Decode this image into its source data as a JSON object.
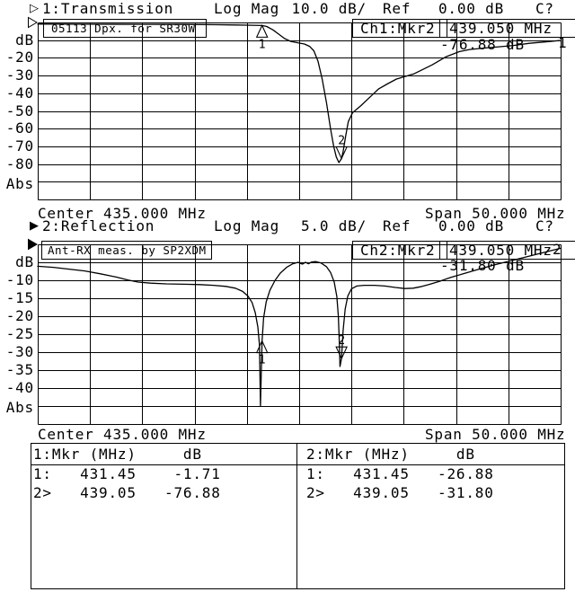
{
  "app": {
    "bg": "#ffffff",
    "fg": "#000000"
  },
  "chart_data": [
    {
      "type": "line",
      "channel": "1",
      "active": false,
      "header": {
        "indicator": "▷",
        "label": "1:Transmission",
        "mode": "Log Mag",
        "scale": "10.0 dB/",
        "ref_label": "Ref",
        "ref_value": "0.00 dB",
        "cal": "C?"
      },
      "title_box": "05113 Dpx. for SR30W",
      "marker_readout": {
        "channel_marker": "Ch1:Mkr2",
        "frequency": "439.050 MHz",
        "value": "-76.88 dB"
      },
      "trace_number": "1",
      "x_axis": {
        "center_label": "Center 435.000 MHz",
        "span_label": "Span 50.000 MHz",
        "center_mhz": 435.0,
        "span_mhz": 50.0,
        "fmin": 410,
        "fmax": 460
      },
      "y_axis": {
        "unit": "dB",
        "ref_db": 0,
        "db_per_div": 10,
        "ylim": [
          -100,
          0
        ],
        "grid": true,
        "labels": [
          {
            "text": "dB",
            "db": -10
          },
          {
            "text": "-20",
            "db": -20
          },
          {
            "text": "-30",
            "db": -30
          },
          {
            "text": "-40",
            "db": -40
          },
          {
            "text": "-50",
            "db": -50
          },
          {
            "text": "-60",
            "db": -60
          },
          {
            "text": "-70",
            "db": -70
          },
          {
            "text": "-80",
            "db": -80
          },
          {
            "text": "Abs",
            "db": -91.5
          }
        ]
      },
      "markers": [
        {
          "n": "1",
          "mhz": 431.45,
          "db": -1.71,
          "dir": "up"
        },
        {
          "n": "2",
          "mhz": 439.05,
          "db": -76.88,
          "dir": "down"
        }
      ],
      "trace": [
        [
          410,
          -0.9
        ],
        [
          415,
          -1.0
        ],
        [
          420,
          -1.05
        ],
        [
          424,
          -1.1
        ],
        [
          427,
          -1.25
        ],
        [
          429,
          -1.4
        ],
        [
          430.5,
          -1.55
        ],
        [
          431.45,
          -1.71
        ],
        [
          431.9,
          -2.3
        ],
        [
          432.5,
          -4.2
        ],
        [
          433,
          -6.4
        ],
        [
          433.6,
          -9.1
        ],
        [
          434.2,
          -10.7
        ],
        [
          434.8,
          -11.4
        ],
        [
          435.5,
          -12.2
        ],
        [
          436,
          -13.5
        ],
        [
          436.4,
          -16
        ],
        [
          436.8,
          -22
        ],
        [
          437.2,
          -32
        ],
        [
          437.6,
          -45
        ],
        [
          438,
          -60
        ],
        [
          438.3,
          -70
        ],
        [
          438.55,
          -76
        ],
        [
          438.8,
          -79.2
        ],
        [
          439.05,
          -76.88
        ],
        [
          439.2,
          -73
        ],
        [
          439.45,
          -64
        ],
        [
          439.7,
          -56
        ],
        [
          440.1,
          -51
        ],
        [
          440.9,
          -47
        ],
        [
          441.8,
          -42
        ],
        [
          442.6,
          -37.5
        ],
        [
          443.5,
          -34.5
        ],
        [
          444.3,
          -32
        ],
        [
          446,
          -29
        ],
        [
          447.7,
          -24
        ],
        [
          449,
          -19.5
        ],
        [
          450.3,
          -16.5
        ],
        [
          451.3,
          -15.3
        ],
        [
          452.8,
          -14.4
        ],
        [
          454.2,
          -13.7
        ],
        [
          455.5,
          -13
        ],
        [
          457,
          -11.8
        ],
        [
          458.5,
          -11
        ],
        [
          459.9,
          -10.2
        ]
      ]
    },
    {
      "type": "line",
      "channel": "2",
      "active": true,
      "header": {
        "indicator": "▶",
        "label": "2:Reflection",
        "mode": "Log Mag",
        "scale": "5.0 dB/",
        "ref_label": "Ref",
        "ref_value": "0.00 dB",
        "cal": "C?"
      },
      "title_box": "Ant-RX meas. by SP2XDM",
      "marker_readout": {
        "channel_marker": "Ch2:Mkr2",
        "frequency": "439.050 MHz",
        "value": "-31.80 dB"
      },
      "trace_number": "2",
      "x_axis": {
        "center_label": "Center 435.000 MHz",
        "span_label": "Span 50.000 MHz",
        "center_mhz": 435.0,
        "span_mhz": 50.0,
        "fmin": 410,
        "fmax": 460
      },
      "y_axis": {
        "unit": "dB",
        "ref_db": 0,
        "db_per_div": 5,
        "ylim": [
          -50,
          0
        ],
        "grid": true,
        "labels": [
          {
            "text": "dB",
            "db": -5
          },
          {
            "text": "-10",
            "db": -10
          },
          {
            "text": "-15",
            "db": -15
          },
          {
            "text": "-20",
            "db": -20
          },
          {
            "text": "-25",
            "db": -25
          },
          {
            "text": "-30",
            "db": -30
          },
          {
            "text": "-35",
            "db": -35
          },
          {
            "text": "-40",
            "db": -40
          },
          {
            "text": "Abs",
            "db": -45.5
          }
        ]
      },
      "markers": [
        {
          "n": "1",
          "mhz": 431.45,
          "db": -26.88,
          "dir": "up"
        },
        {
          "n": "2",
          "mhz": 439.05,
          "db": -31.8,
          "dir": "down"
        }
      ],
      "trace": [
        [
          410,
          -6.1
        ],
        [
          411.5,
          -6.4
        ],
        [
          413,
          -6.9
        ],
        [
          414.5,
          -7.4
        ],
        [
          416,
          -8.2
        ],
        [
          417.5,
          -9.1
        ],
        [
          418.6,
          -9.9
        ],
        [
          419.6,
          -10.5
        ],
        [
          420.8,
          -10.8
        ],
        [
          422.3,
          -11.0
        ],
        [
          424,
          -11.1
        ],
        [
          425.5,
          -11.2
        ],
        [
          426.8,
          -11.4
        ],
        [
          428,
          -11.7
        ],
        [
          428.9,
          -12.2
        ],
        [
          429.6,
          -13.1
        ],
        [
          430.1,
          -14.4
        ],
        [
          430.5,
          -16.2
        ],
        [
          430.8,
          -19
        ],
        [
          431.05,
          -23
        ],
        [
          431.2,
          -28
        ],
        [
          431.3,
          -45
        ],
        [
          431.45,
          -26.88
        ],
        [
          431.6,
          -20.5
        ],
        [
          431.85,
          -16
        ],
        [
          432.2,
          -12.8
        ],
        [
          432.7,
          -10
        ],
        [
          433.2,
          -8
        ],
        [
          433.8,
          -6.4
        ],
        [
          434.4,
          -5.4
        ],
        [
          434.9,
          -5.0
        ],
        [
          435.3,
          -5.5
        ],
        [
          435.6,
          -5.0
        ],
        [
          435.9,
          -5.4
        ],
        [
          436.2,
          -4.9
        ],
        [
          436.6,
          -4.8
        ],
        [
          437.1,
          -5.2
        ],
        [
          437.6,
          -6.2
        ],
        [
          438,
          -7.8
        ],
        [
          438.35,
          -10.5
        ],
        [
          438.6,
          -14.5
        ],
        [
          438.75,
          -20
        ],
        [
          438.85,
          -28
        ],
        [
          438.9,
          -34
        ],
        [
          439.05,
          -31.8
        ],
        [
          439.2,
          -24
        ],
        [
          439.4,
          -18
        ],
        [
          439.65,
          -14.4
        ],
        [
          440,
          -12.4
        ],
        [
          440.5,
          -11.6
        ],
        [
          441.2,
          -11.4
        ],
        [
          442.2,
          -11.4
        ],
        [
          443.2,
          -11.6
        ],
        [
          444.2,
          -12.0
        ],
        [
          445.1,
          -12.3
        ],
        [
          445.9,
          -12.2
        ],
        [
          446.6,
          -11.8
        ],
        [
          447.4,
          -11.2
        ],
        [
          448.4,
          -10.3
        ],
        [
          449.5,
          -9.2
        ],
        [
          450.8,
          -8.1
        ],
        [
          452.2,
          -6.9
        ],
        [
          453.7,
          -5.7
        ],
        [
          455.2,
          -4.6
        ],
        [
          456.7,
          -3.5
        ],
        [
          458.2,
          -2.4
        ],
        [
          459.3,
          -1.6
        ],
        [
          460,
          -1.1
        ]
      ]
    }
  ],
  "marker_table": {
    "panels": [
      {
        "header": "1:Mkr (MHz)     dB",
        "rows": [
          "1:   431.45    -1.71",
          "2>   439.05   -76.88"
        ],
        "markers": [
          {
            "n": "1",
            "mhz": 431.45,
            "db": -1.71
          },
          {
            "n": "2",
            "mhz": 439.05,
            "db": -76.88
          }
        ]
      },
      {
        "header": "2:Mkr (MHz)     dB",
        "rows": [
          "1:   431.45   -26.88",
          "2>   439.05   -31.80"
        ],
        "markers": [
          {
            "n": "1",
            "mhz": 431.45,
            "db": -26.88
          },
          {
            "n": "2",
            "mhz": 439.05,
            "db": -31.8
          }
        ]
      }
    ]
  }
}
